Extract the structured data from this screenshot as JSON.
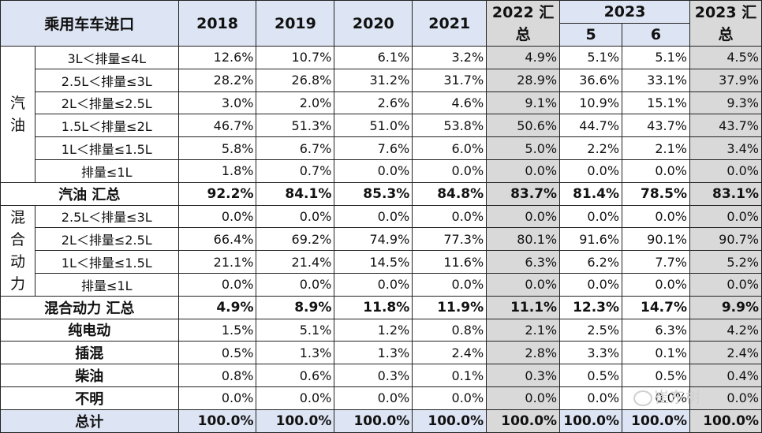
{
  "header": {
    "title": "乘用车车进口",
    "years": [
      "2018",
      "2019",
      "2020",
      "2021"
    ],
    "sum2022": "2022 汇\n总",
    "y2023": "2023",
    "months": [
      "5",
      "6"
    ],
    "sum2023": "2023 汇\n总"
  },
  "gasoline": {
    "category": "汽\n油",
    "rows": [
      {
        "label": "3L＜排量≤4L",
        "values": [
          "12.6%",
          "10.7%",
          "6.1%",
          "3.2%",
          "4.9%",
          "5.1%",
          "5.1%",
          "4.5%"
        ]
      },
      {
        "label": "2.5L＜排量≤3L",
        "values": [
          "28.2%",
          "26.8%",
          "31.2%",
          "31.7%",
          "28.9%",
          "36.6%",
          "33.1%",
          "37.9%"
        ]
      },
      {
        "label": "2L＜排量≤2.5L",
        "values": [
          "3.0%",
          "2.0%",
          "2.6%",
          "4.6%",
          "9.1%",
          "10.9%",
          "15.1%",
          "9.3%"
        ]
      },
      {
        "label": "1.5L＜排量≤2L",
        "values": [
          "46.7%",
          "51.3%",
          "51.0%",
          "53.8%",
          "50.6%",
          "44.7%",
          "43.7%",
          "43.7%"
        ]
      },
      {
        "label": "1L＜排量≤1.5L",
        "values": [
          "5.8%",
          "6.7%",
          "7.6%",
          "6.0%",
          "5.0%",
          "2.2%",
          "2.1%",
          "3.4%"
        ]
      },
      {
        "label": "排量≤1L",
        "values": [
          "1.8%",
          "0.7%",
          "0.0%",
          "0.0%",
          "0.0%",
          "0.0%",
          "0.0%",
          "0.0%"
        ]
      }
    ],
    "subtotal": {
      "label": "汽油 汇总",
      "values": [
        "92.2%",
        "84.1%",
        "85.3%",
        "84.8%",
        "83.7%",
        "81.4%",
        "78.5%",
        "83.1%"
      ]
    }
  },
  "hybrid": {
    "category": "混\n合\n动\n力",
    "rows": [
      {
        "label": "2.5L＜排量≤3L",
        "values": [
          "0.0%",
          "0.0%",
          "0.0%",
          "0.0%",
          "0.0%",
          "0.0%",
          "0.0%",
          "0.0%"
        ]
      },
      {
        "label": "2L＜排量≤2.5L",
        "values": [
          "66.4%",
          "69.2%",
          "74.9%",
          "77.3%",
          "80.1%",
          "91.6%",
          "90.1%",
          "90.7%"
        ]
      },
      {
        "label": "1L＜排量≤1.5L",
        "values": [
          "21.1%",
          "21.4%",
          "14.5%",
          "11.6%",
          "6.3%",
          "6.2%",
          "7.7%",
          "5.2%"
        ]
      },
      {
        "label": "排量≤1L",
        "values": [
          "0.0%",
          "0.0%",
          "0.0%",
          "0.0%",
          "0.0%",
          "0.0%",
          "0.0%",
          "0.0%"
        ]
      }
    ],
    "subtotal": {
      "label": "混合动力 汇总",
      "values": [
        "4.9%",
        "8.9%",
        "11.8%",
        "11.9%",
        "11.1%",
        "12.3%",
        "14.7%",
        "9.9%"
      ]
    }
  },
  "others": [
    {
      "label": "纯电动",
      "values": [
        "1.5%",
        "5.1%",
        "1.2%",
        "0.8%",
        "2.1%",
        "2.5%",
        "6.3%",
        "4.2%"
      ]
    },
    {
      "label": "插混",
      "values": [
        "0.5%",
        "1.3%",
        "1.3%",
        "2.4%",
        "2.8%",
        "3.3%",
        "0.1%",
        "2.4%"
      ]
    },
    {
      "label": "柴油",
      "values": [
        "0.8%",
        "0.6%",
        "0.3%",
        "0.1%",
        "0.3%",
        "0.5%",
        "0.5%",
        "0.4%"
      ]
    },
    {
      "label": "不明",
      "values": [
        "0.0%",
        "0.0%",
        "0.0%",
        "0.0%",
        "0.0%",
        "0.0%",
        "0.0%",
        "0.0%"
      ]
    }
  ],
  "total": {
    "label": "总计",
    "values": [
      "100.0%",
      "100.0%",
      "100.0%",
      "100.0%",
      "100.0%",
      "100.0%",
      "100.0%",
      "100.0%"
    ]
  },
  "watermark": "崔东树",
  "colors": {
    "header_bg": "#dde4f3",
    "summary_col_bg": "#d9d9d9"
  }
}
